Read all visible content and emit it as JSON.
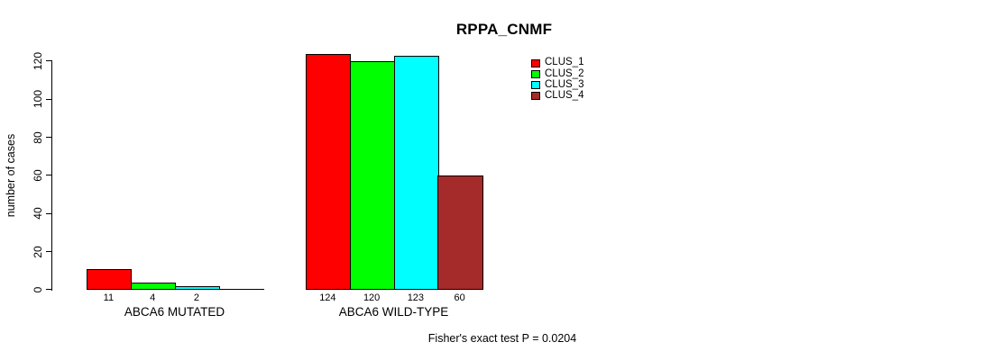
{
  "chart_data": {
    "type": "bar",
    "title": "RPPA_CNMF",
    "ylabel": "number of cases",
    "xlabel": "",
    "ylim": [
      0,
      120
    ],
    "yticks": [
      0,
      20,
      40,
      60,
      80,
      100,
      120
    ],
    "grid": false,
    "legend_position": "top-right-inside",
    "categories": [
      "ABCA6 MUTATED",
      "ABCA6 WILD-TYPE"
    ],
    "series": [
      {
        "name": "CLUS_1",
        "color": "#FF0000",
        "values": [
          11,
          124
        ]
      },
      {
        "name": "CLUS_2",
        "color": "#00FF00",
        "values": [
          4,
          120
        ]
      },
      {
        "name": "CLUS_3",
        "color": "#00FFFF",
        "values": [
          2,
          123
        ]
      },
      {
        "name": "CLUS_4",
        "color": "#A52A2A",
        "values": [
          0,
          60
        ]
      }
    ],
    "bar_value_labels": [
      [
        "11",
        "4",
        "2",
        ""
      ],
      [
        "124",
        "120",
        "123",
        "60"
      ]
    ],
    "annotation": "Fisher's exact test P = 0.0204"
  },
  "colors": {
    "background": "#FFFFFF",
    "axis": "#000000",
    "text": "#000000"
  }
}
